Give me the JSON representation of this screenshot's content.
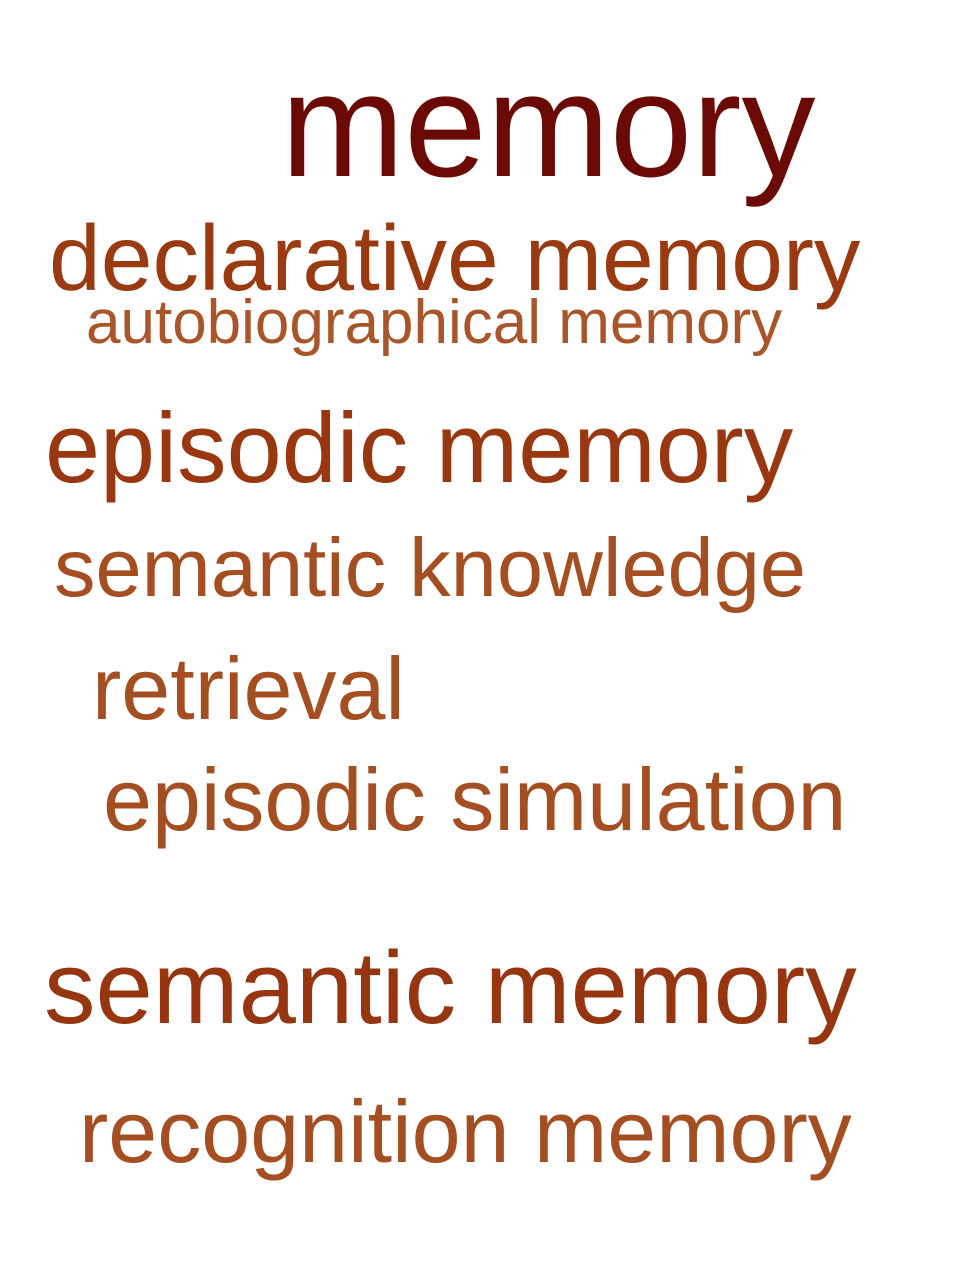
{
  "word_cloud": {
    "words": [
      {
        "text": "memory",
        "color": "#6b0a05"
      },
      {
        "text": "declarative memory",
        "color": "#9a3a10"
      },
      {
        "text": "autobiographical memory",
        "color": "#a9552a"
      },
      {
        "text": "episodic memory",
        "color": "#993810"
      },
      {
        "text": "semantic knowledge",
        "color": "#a44e22"
      },
      {
        "text": "retrieval",
        "color": "#a44e22"
      },
      {
        "text": "episodic simulation",
        "color": "#a44e22"
      },
      {
        "text": "semantic memory",
        "color": "#963510"
      },
      {
        "text": "recognition memory",
        "color": "#a44e22"
      }
    ]
  }
}
